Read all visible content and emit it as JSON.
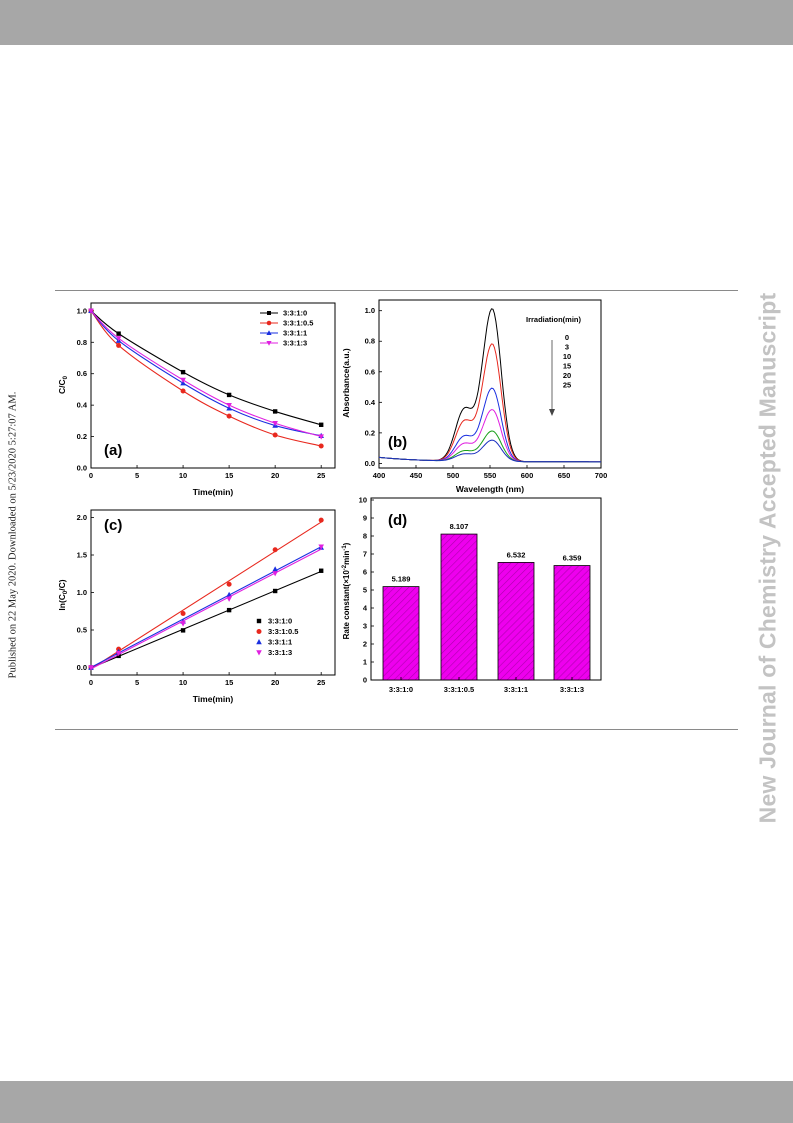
{
  "page": {
    "side_left_text": "Published on 22 May 2020. Downloaded on 5/23/2020 5:27:07 AM.",
    "side_right_text": "New Journal of Chemistry Accepted Manuscript",
    "colors": {
      "bars": "#a7a7a7",
      "watermark": "#c3c3c3",
      "magenta": "#ee00ee"
    }
  },
  "chart_data": [
    {
      "type": "line",
      "panel_label": "(a)",
      "xlabel": "Time(min)",
      "ylabel_main": "C/C",
      "ylabel_sub": "0",
      "xlim": [
        0,
        26.5
      ],
      "ylim": [
        0,
        1.05
      ],
      "xticks": [
        "0",
        "5",
        "10",
        "15",
        "20",
        "25"
      ],
      "yticks": [
        "0.0",
        "0.2",
        "0.4",
        "0.6",
        "0.8",
        "1.0"
      ],
      "x": [
        0,
        3,
        10,
        15,
        20,
        25
      ],
      "legend_position": "top-right",
      "series": [
        {
          "name": "3:3:1:0",
          "color": "#000000",
          "marker": "square",
          "values": [
            1.0,
            0.855,
            0.61,
            0.465,
            0.36,
            0.275
          ]
        },
        {
          "name": "3:3:1:0.5",
          "color": "#e8281e",
          "marker": "circle",
          "values": [
            1.0,
            0.78,
            0.49,
            0.33,
            0.21,
            0.14
          ]
        },
        {
          "name": "3:3:1:1",
          "color": "#1a2fe0",
          "marker": "triangle-up",
          "values": [
            1.0,
            0.81,
            0.54,
            0.38,
            0.27,
            0.205
          ]
        },
        {
          "name": "3:3:1:3",
          "color": "#e020e0",
          "marker": "triangle-down",
          "values": [
            1.0,
            0.825,
            0.56,
            0.4,
            0.285,
            0.2
          ]
        }
      ]
    },
    {
      "type": "line",
      "panel_label": "(b)",
      "xlabel": "Wavelength (nm)",
      "ylabel": "Absorbance(a.u.)",
      "xlim": [
        400,
        700
      ],
      "ylim": [
        0,
        1.1
      ],
      "xticks": [
        "400",
        "450",
        "500",
        "550",
        "600",
        "650",
        "700"
      ],
      "yticks": [
        "0.0",
        "0.2",
        "0.4",
        "0.6",
        "0.8",
        "1.0"
      ],
      "legend_title": "Irradiation(min)",
      "legend_position": "top-right",
      "series": [
        {
          "name": "0",
          "color": "#000000",
          "peak": 1.0
        },
        {
          "name": "3",
          "color": "#e8281e",
          "peak": 0.77
        },
        {
          "name": "10",
          "color": "#1a2fe0",
          "peak": 0.48
        },
        {
          "name": "15",
          "color": "#e020e0",
          "peak": 0.34
        },
        {
          "name": "20",
          "color": "#1aa01a",
          "peak": 0.2
        },
        {
          "name": "25",
          "color": "#1a30c0",
          "peak": 0.14
        }
      ]
    },
    {
      "type": "scatter",
      "panel_label": "(c)",
      "xlabel": "Time(min)",
      "ylabel_main": "ln(C",
      "ylabel_sub": "0",
      "ylabel_tail": "/C)",
      "xlim": [
        0,
        26.5
      ],
      "ylim": [
        -0.1,
        2.1
      ],
      "xticks": [
        "0",
        "5",
        "10",
        "15",
        "20",
        "25"
      ],
      "yticks": [
        "0.0",
        "0.5",
        "1.0",
        "1.5",
        "2.0"
      ],
      "x": [
        0,
        3,
        10,
        15,
        20,
        25
      ],
      "legend_position": "bottom-right",
      "series": [
        {
          "name": "3:3:1:0",
          "color": "#000000",
          "marker": "square",
          "values": [
            0.0,
            0.155,
            0.495,
            0.765,
            1.02,
            1.29
          ]
        },
        {
          "name": "3:3:1:0.5",
          "color": "#e8281e",
          "marker": "circle",
          "values": [
            0.0,
            0.245,
            0.72,
            1.11,
            1.57,
            1.965
          ]
        },
        {
          "name": "3:3:1:1",
          "color": "#1a2fe0",
          "marker": "triangle-up",
          "values": [
            0.0,
            0.21,
            0.615,
            0.97,
            1.31,
            1.6
          ]
        },
        {
          "name": "3:3:1:3",
          "color": "#e020e0",
          "marker": "triangle-down",
          "values": [
            0.0,
            0.19,
            0.585,
            0.915,
            1.255,
            1.61
          ]
        }
      ]
    },
    {
      "type": "bar",
      "panel_label": "(d)",
      "xlabel": "",
      "ylabel_main": "Rate constant(×10",
      "ylabel_sup1": "-2",
      "ylabel_mid": "min",
      "ylabel_sup2": "-1",
      "ylabel_tail": ")",
      "ylim": [
        0,
        10
      ],
      "yticks": [
        "0",
        "1",
        "2",
        "3",
        "4",
        "5",
        "6",
        "7",
        "8",
        "9",
        "10"
      ],
      "categories": [
        "3:3:1:0",
        "3:3:1:0.5",
        "3:3:1:1",
        "3:3:1:3"
      ],
      "values": [
        5.189,
        8.107,
        6.532,
        6.359
      ],
      "value_labels": [
        "5.189",
        "8.107",
        "6.532",
        "6.359"
      ],
      "bar_color": "#ee00ee"
    }
  ]
}
